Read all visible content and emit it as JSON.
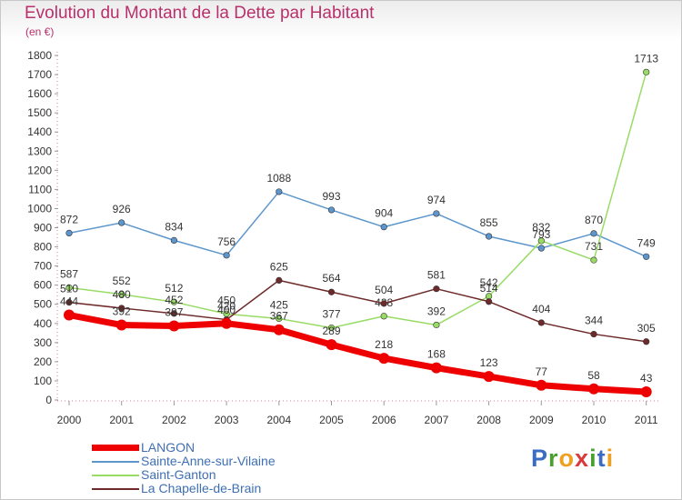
{
  "header": {
    "title": "Evolution du Montant de la Dette par Habitant",
    "subtitle": "(en €)"
  },
  "logo": {
    "letters": [
      {
        "ch": "P",
        "color": "#3b6cc4"
      },
      {
        "ch": "r",
        "color": "#4aa02c"
      },
      {
        "ch": "o",
        "color": "#f0a020"
      },
      {
        "ch": "x",
        "color": "#d93a3a"
      },
      {
        "ch": "i",
        "color": "#4aa02c"
      },
      {
        "ch": "t",
        "color": "#3b6cc4"
      },
      {
        "ch": "i",
        "color": "#f0a020"
      }
    ]
  },
  "chart_data": {
    "type": "line",
    "x": [
      "2000",
      "2001",
      "2002",
      "2003",
      "2004",
      "2005",
      "2006",
      "2007",
      "2008",
      "2009",
      "2010",
      "2011"
    ],
    "ylim": [
      0,
      1800
    ],
    "yticks": [
      0,
      100,
      200,
      300,
      400,
      500,
      600,
      700,
      800,
      900,
      1000,
      1100,
      1200,
      1300,
      1400,
      1500,
      1600,
      1700,
      1800
    ],
    "grid": false,
    "legend": "bottom-left",
    "series": [
      {
        "name": "LANGON",
        "color": "#ee0000",
        "values": [
          444,
          392,
          387,
          400,
          367,
          289,
          218,
          168,
          123,
          77,
          58,
          43
        ]
      },
      {
        "name": "Sainte-Anne-sur-Vilaine",
        "color": "#5c96cc",
        "values": [
          872,
          926,
          834,
          756,
          1088,
          993,
          904,
          974,
          855,
          793,
          870,
          749
        ]
      },
      {
        "name": "Saint-Ganton",
        "color": "#98dc66",
        "values": [
          587,
          552,
          512,
          450,
          425,
          377,
          438,
          392,
          542,
          832,
          731,
          1713
        ]
      },
      {
        "name": "La Chapelle-de-Brain",
        "color": "#6e2a2a",
        "values": [
          510,
          480,
          452,
          420,
          625,
          564,
          504,
          581,
          514,
          404,
          344,
          305
        ]
      }
    ]
  }
}
